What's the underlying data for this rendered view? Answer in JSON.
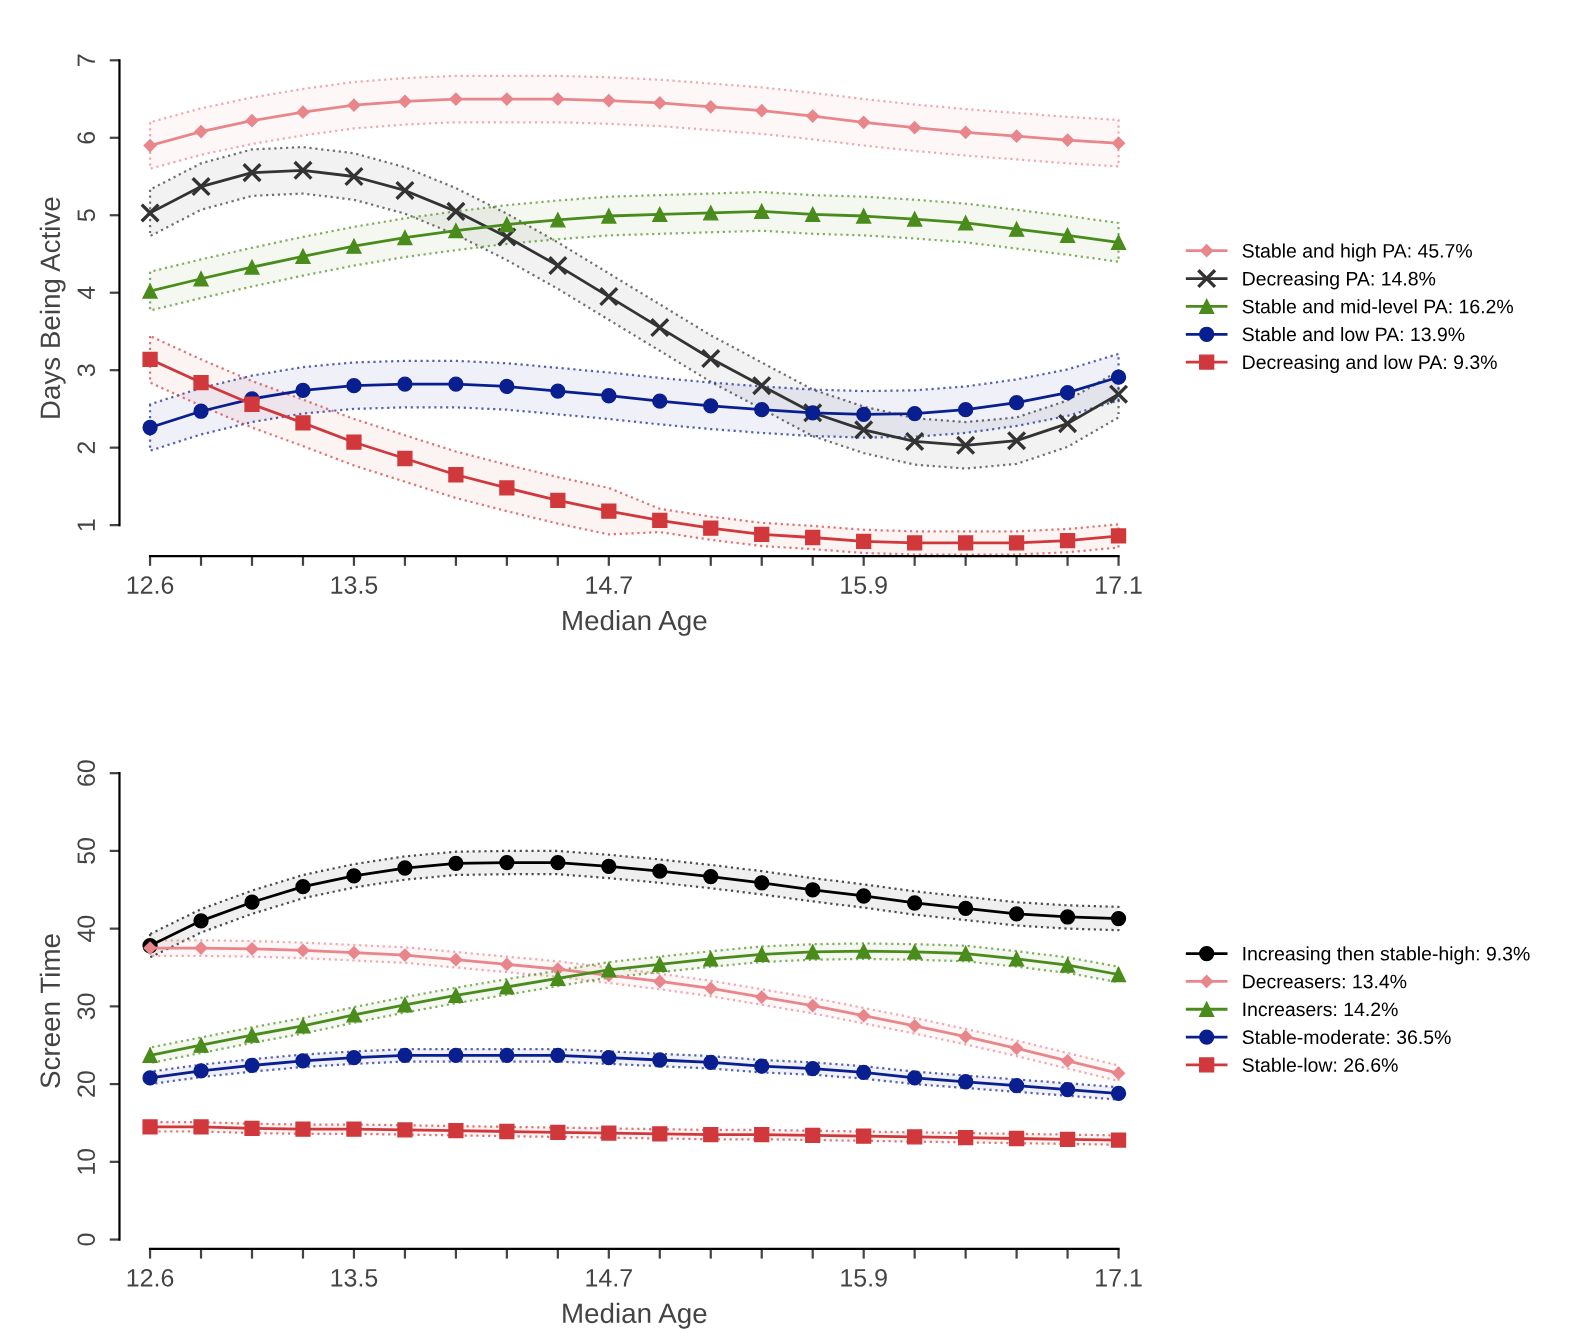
{
  "chart_data": [
    {
      "type": "line",
      "xlabel": "Median Age",
      "ylabel": "Days Being Active",
      "legend": "right",
      "categories": [
        "12.6",
        null,
        null,
        null,
        "13.5",
        null,
        null,
        null,
        null,
        "14.7",
        null,
        null,
        null,
        null,
        "15.9",
        null,
        null,
        null,
        null,
        "17.1"
      ],
      "ylim": [
        0.6,
        7
      ],
      "yticks": [
        1,
        2,
        3,
        4,
        5,
        6,
        7
      ],
      "series": [
        {
          "name": "Stable and high PA: 45.7%",
          "color": "#e8868b",
          "marker": "diamond",
          "values": [
            5.9,
            6.08,
            6.22,
            6.33,
            6.42,
            6.47,
            6.5,
            6.5,
            6.5,
            6.48,
            6.45,
            6.4,
            6.35,
            6.28,
            6.2,
            6.13,
            6.07,
            6.02,
            5.97,
            5.93
          ],
          "lower": [
            5.6,
            5.78,
            5.92,
            6.03,
            6.12,
            6.17,
            6.2,
            6.2,
            6.2,
            6.18,
            6.15,
            6.1,
            6.05,
            5.98,
            5.9,
            5.83,
            5.77,
            5.72,
            5.67,
            5.63
          ],
          "upper": [
            6.2,
            6.38,
            6.52,
            6.63,
            6.72,
            6.77,
            6.8,
            6.8,
            6.8,
            6.78,
            6.75,
            6.7,
            6.65,
            6.58,
            6.5,
            6.43,
            6.37,
            6.32,
            6.27,
            6.23
          ]
        },
        {
          "name": "Decreasing PA: 14.8%",
          "color": "#333333",
          "marker": "cross",
          "values": [
            5.03,
            5.37,
            5.55,
            5.58,
            5.5,
            5.32,
            5.05,
            4.72,
            4.35,
            3.95,
            3.55,
            3.15,
            2.8,
            2.45,
            2.23,
            2.08,
            2.03,
            2.09,
            2.31,
            2.69
          ],
          "lower": [
            4.73,
            5.07,
            5.25,
            5.28,
            5.2,
            5.02,
            4.75,
            4.42,
            4.05,
            3.65,
            3.25,
            2.85,
            2.5,
            2.15,
            1.93,
            1.78,
            1.73,
            1.79,
            2.01,
            2.39
          ],
          "upper": [
            5.33,
            5.67,
            5.85,
            5.88,
            5.8,
            5.62,
            5.35,
            5.02,
            4.65,
            4.25,
            3.85,
            3.45,
            3.1,
            2.75,
            2.53,
            2.38,
            2.33,
            2.39,
            2.61,
            2.99
          ]
        },
        {
          "name": "Stable and mid-level PA: 16.2%",
          "color": "#4a8c1c",
          "marker": "triangle",
          "values": [
            4.02,
            4.18,
            4.33,
            4.47,
            4.6,
            4.71,
            4.8,
            4.88,
            4.94,
            4.99,
            5.01,
            5.03,
            5.05,
            5.01,
            4.99,
            4.95,
            4.9,
            4.82,
            4.74,
            4.65
          ],
          "lower": [
            3.77,
            3.93,
            4.08,
            4.22,
            4.35,
            4.46,
            4.55,
            4.63,
            4.69,
            4.74,
            4.76,
            4.78,
            4.8,
            4.76,
            4.74,
            4.7,
            4.65,
            4.57,
            4.49,
            4.4
          ],
          "upper": [
            4.27,
            4.43,
            4.58,
            4.72,
            4.85,
            4.96,
            5.05,
            5.13,
            5.19,
            5.24,
            5.26,
            5.28,
            5.3,
            5.26,
            5.24,
            5.2,
            5.15,
            5.07,
            4.99,
            4.9
          ]
        },
        {
          "name": "Stable and low PA: 13.9%",
          "color": "#0a1f8f",
          "marker": "circle",
          "values": [
            2.26,
            2.47,
            2.63,
            2.74,
            2.8,
            2.82,
            2.82,
            2.79,
            2.73,
            2.67,
            2.6,
            2.54,
            2.49,
            2.45,
            2.43,
            2.44,
            2.49,
            2.58,
            2.71,
            2.91
          ],
          "lower": [
            1.96,
            2.17,
            2.33,
            2.44,
            2.5,
            2.52,
            2.52,
            2.49,
            2.43,
            2.37,
            2.3,
            2.24,
            2.19,
            2.15,
            2.13,
            2.14,
            2.19,
            2.28,
            2.41,
            2.61
          ],
          "upper": [
            2.56,
            2.77,
            2.93,
            3.04,
            3.1,
            3.12,
            3.12,
            3.09,
            3.03,
            2.97,
            2.9,
            2.84,
            2.79,
            2.75,
            2.73,
            2.74,
            2.79,
            2.88,
            3.01,
            3.21
          ]
        },
        {
          "name": "Decreasing and low PA: 9.3%",
          "color": "#d0383c",
          "marker": "square",
          "values": [
            3.14,
            2.84,
            2.56,
            2.32,
            2.07,
            1.86,
            1.65,
            1.48,
            1.32,
            1.18,
            1.06,
            0.96,
            0.88,
            0.84,
            0.79,
            0.77,
            0.77,
            0.77,
            0.8,
            0.86
          ],
          "lower": [
            2.84,
            2.54,
            2.26,
            2.02,
            1.77,
            1.56,
            1.35,
            1.18,
            1.02,
            0.88,
            0.91,
            0.81,
            0.73,
            0.69,
            0.64,
            0.62,
            0.62,
            0.62,
            0.65,
            0.71
          ],
          "upper": [
            3.44,
            3.14,
            2.86,
            2.62,
            2.37,
            2.16,
            1.95,
            1.78,
            1.62,
            1.48,
            1.21,
            1.11,
            1.03,
            0.99,
            0.94,
            0.92,
            0.92,
            0.92,
            0.95,
            1.01
          ]
        }
      ]
    },
    {
      "type": "line",
      "xlabel": "Median Age",
      "ylabel": "Screen Time",
      "legend": "right",
      "categories": [
        "12.6",
        null,
        null,
        null,
        "13.5",
        null,
        null,
        null,
        null,
        "14.7",
        null,
        null,
        null,
        null,
        "15.9",
        null,
        null,
        null,
        null,
        "17.1"
      ],
      "ylim": [
        -1.2,
        60
      ],
      "yticks": [
        0,
        10,
        20,
        30,
        40,
        50,
        60
      ],
      "series": [
        {
          "name": "Increasing then stable-high: 9.3%",
          "color": "#000000",
          "marker": "circle",
          "values": [
            37.8,
            41.0,
            43.4,
            45.4,
            46.8,
            47.8,
            48.4,
            48.5,
            48.5,
            48.0,
            47.4,
            46.7,
            45.9,
            45.0,
            44.2,
            43.3,
            42.6,
            41.9,
            41.5,
            41.3
          ],
          "lower": [
            36.3,
            39.5,
            41.9,
            43.9,
            45.3,
            46.3,
            46.9,
            47.0,
            47.0,
            46.5,
            45.9,
            45.2,
            44.4,
            43.5,
            42.7,
            41.8,
            41.1,
            40.4,
            40.0,
            39.8
          ],
          "upper": [
            39.3,
            42.5,
            44.9,
            46.9,
            48.3,
            49.3,
            49.9,
            50.0,
            50.0,
            49.5,
            48.9,
            48.2,
            47.4,
            46.5,
            45.7,
            44.8,
            44.1,
            43.4,
            43.0,
            42.8
          ]
        },
        {
          "name": "Decreasers: 13.4%",
          "color": "#e8868b",
          "marker": "diamond",
          "values": [
            37.5,
            37.5,
            37.4,
            37.2,
            36.9,
            36.6,
            36.0,
            35.4,
            34.8,
            34.0,
            33.2,
            32.3,
            31.2,
            30.1,
            28.8,
            27.5,
            26.1,
            24.6,
            23.0,
            21.4
          ],
          "lower": [
            36.5,
            36.5,
            36.4,
            36.2,
            35.9,
            35.6,
            35.0,
            34.4,
            33.8,
            33.0,
            32.2,
            31.3,
            30.2,
            29.1,
            27.8,
            26.5,
            25.1,
            23.6,
            22.0,
            20.4
          ],
          "upper": [
            38.5,
            38.5,
            38.4,
            38.2,
            37.9,
            37.6,
            37.0,
            36.4,
            35.8,
            35.0,
            34.2,
            33.3,
            32.2,
            31.1,
            29.8,
            28.5,
            27.1,
            25.6,
            24.0,
            22.4
          ]
        },
        {
          "name": "Increasers: 14.2%",
          "color": "#4a8c1c",
          "marker": "triangle",
          "values": [
            23.7,
            25.0,
            26.3,
            27.5,
            28.9,
            30.2,
            31.4,
            32.5,
            33.6,
            34.7,
            35.4,
            36.1,
            36.7,
            37.0,
            37.1,
            37.0,
            36.8,
            36.1,
            35.3,
            34.1
          ],
          "lower": [
            22.7,
            24.0,
            25.3,
            26.5,
            27.9,
            29.2,
            30.4,
            31.5,
            32.6,
            33.7,
            34.4,
            35.1,
            35.7,
            36.0,
            36.1,
            36.0,
            35.8,
            35.1,
            34.3,
            33.1
          ],
          "upper": [
            24.7,
            26.0,
            27.3,
            28.5,
            29.9,
            31.2,
            32.4,
            33.5,
            34.6,
            35.7,
            36.4,
            37.1,
            37.7,
            38.0,
            38.1,
            38.0,
            37.8,
            37.1,
            36.3,
            35.1
          ]
        },
        {
          "name": "Stable-moderate: 36.5%",
          "color": "#0a1f8f",
          "marker": "circle",
          "values": [
            20.8,
            21.7,
            22.4,
            23.0,
            23.4,
            23.7,
            23.7,
            23.7,
            23.7,
            23.4,
            23.1,
            22.8,
            22.3,
            22.0,
            21.5,
            20.8,
            20.3,
            19.8,
            19.3,
            18.8
          ],
          "lower": [
            20.0,
            20.9,
            21.6,
            22.2,
            22.6,
            22.9,
            22.9,
            22.9,
            22.9,
            22.6,
            22.3,
            22.0,
            21.5,
            21.2,
            20.7,
            20.0,
            19.5,
            19.0,
            18.5,
            18.0
          ],
          "upper": [
            21.6,
            22.5,
            23.2,
            23.8,
            24.2,
            24.5,
            24.5,
            24.5,
            24.5,
            24.2,
            23.9,
            23.6,
            23.1,
            22.8,
            22.3,
            21.6,
            21.1,
            20.6,
            20.1,
            19.6
          ]
        },
        {
          "name": "Stable-low: 26.6%",
          "color": "#d0383c",
          "marker": "square",
          "values": [
            14.5,
            14.5,
            14.3,
            14.2,
            14.2,
            14.1,
            14.0,
            13.9,
            13.8,
            13.7,
            13.6,
            13.5,
            13.5,
            13.4,
            13.3,
            13.2,
            13.1,
            13.0,
            12.9,
            12.8
          ],
          "lower": [
            13.9,
            13.9,
            13.7,
            13.6,
            13.6,
            13.5,
            13.4,
            13.3,
            13.2,
            13.1,
            13.0,
            12.9,
            12.9,
            12.8,
            12.7,
            12.6,
            12.5,
            12.4,
            12.3,
            12.2
          ],
          "upper": [
            15.1,
            15.1,
            14.9,
            14.8,
            14.8,
            14.7,
            14.6,
            14.5,
            14.4,
            14.3,
            14.2,
            14.1,
            14.1,
            14.0,
            13.9,
            13.8,
            13.7,
            13.6,
            13.5,
            13.4
          ]
        }
      ]
    }
  ]
}
